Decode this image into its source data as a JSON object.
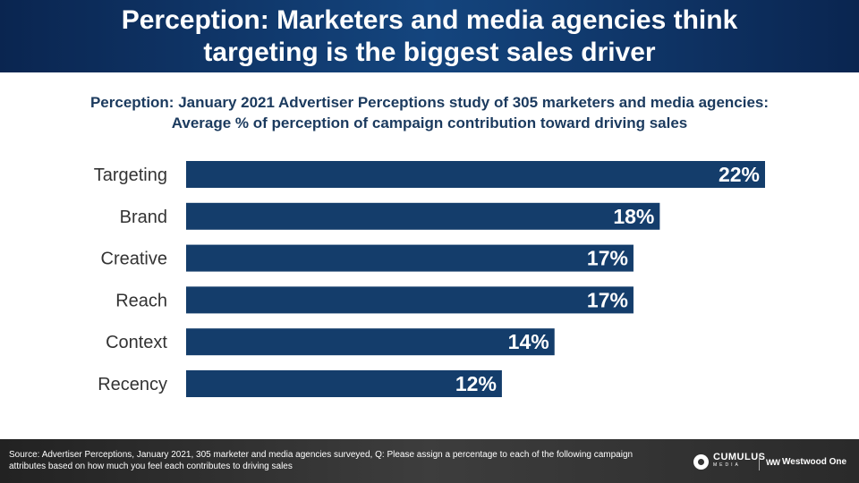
{
  "slide": {
    "title": "Perception: Marketers and media agencies think targeting is the biggest sales driver",
    "subtitle_line1": "Perception: January 2021 Advertiser Perceptions study of 305 marketers and media agencies:",
    "subtitle_line2": "Average % of perception of campaign contribution toward driving sales"
  },
  "chart_data": {
    "type": "bar",
    "orientation": "horizontal",
    "title": "Average % of perception of campaign contribution toward driving sales",
    "categories": [
      "Targeting",
      "Brand",
      "Creative",
      "Reach",
      "Context",
      "Recency"
    ],
    "values": [
      22,
      18,
      17,
      17,
      14,
      12
    ],
    "value_labels": [
      "22%",
      "18%",
      "17%",
      "17%",
      "14%",
      "12%"
    ],
    "unit": "%",
    "xlim": [
      0,
      22
    ],
    "bar_color": "#143d6b",
    "label_color": "#ffffff",
    "grid": false
  },
  "footer": {
    "source": "Source: Advertiser Perceptions, January 2021, 305 marketer and media agencies surveyed, Q: Please assign a percentage to each of the following campaign attributes based on how much you feel each contributes to driving sales",
    "logo1_main": "CUMULUS",
    "logo1_sub": "MEDIA",
    "logo2_mark": "WW",
    "logo2_text": "Westwood One"
  }
}
